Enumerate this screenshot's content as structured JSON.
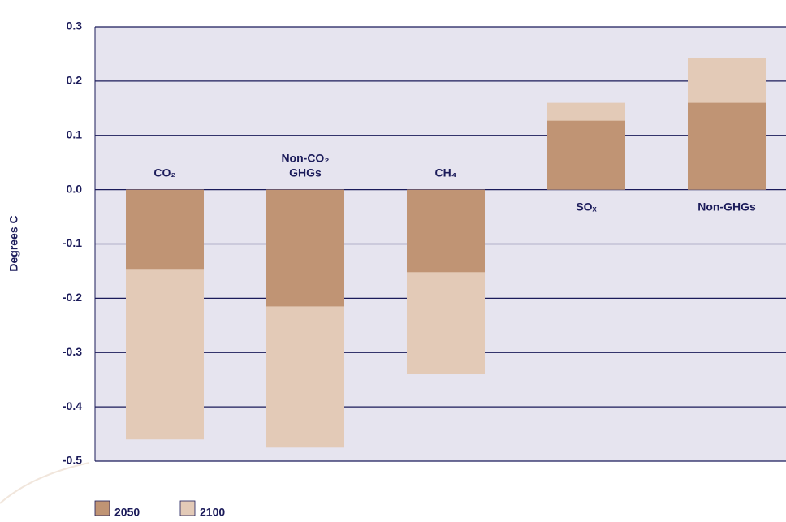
{
  "chart_data": {
    "type": "bar",
    "overlap": true,
    "ylabel": "Degrees C",
    "categories": [
      "CO₂",
      "Non-CO₂ GHGs",
      "CH₄",
      "SOₓ",
      "Non-GHGs"
    ],
    "series": [
      {
        "name": "2100",
        "color": "#e3cab7",
        "values": [
          -0.46,
          -0.475,
          -0.34,
          0.16,
          0.242
        ]
      },
      {
        "name": "2050",
        "color": "#c09474",
        "values": [
          -0.146,
          -0.215,
          -0.152,
          0.127,
          0.16
        ]
      }
    ],
    "legend_order": [
      1,
      0
    ],
    "ylim": [
      -0.5,
      0.3
    ],
    "yticks": [
      -0.5,
      -0.4,
      -0.3,
      -0.2,
      -0.1,
      {
        "value": 0,
        "label": "0.0"
      },
      0.1,
      0.2,
      0.3
    ],
    "grid": true
  }
}
